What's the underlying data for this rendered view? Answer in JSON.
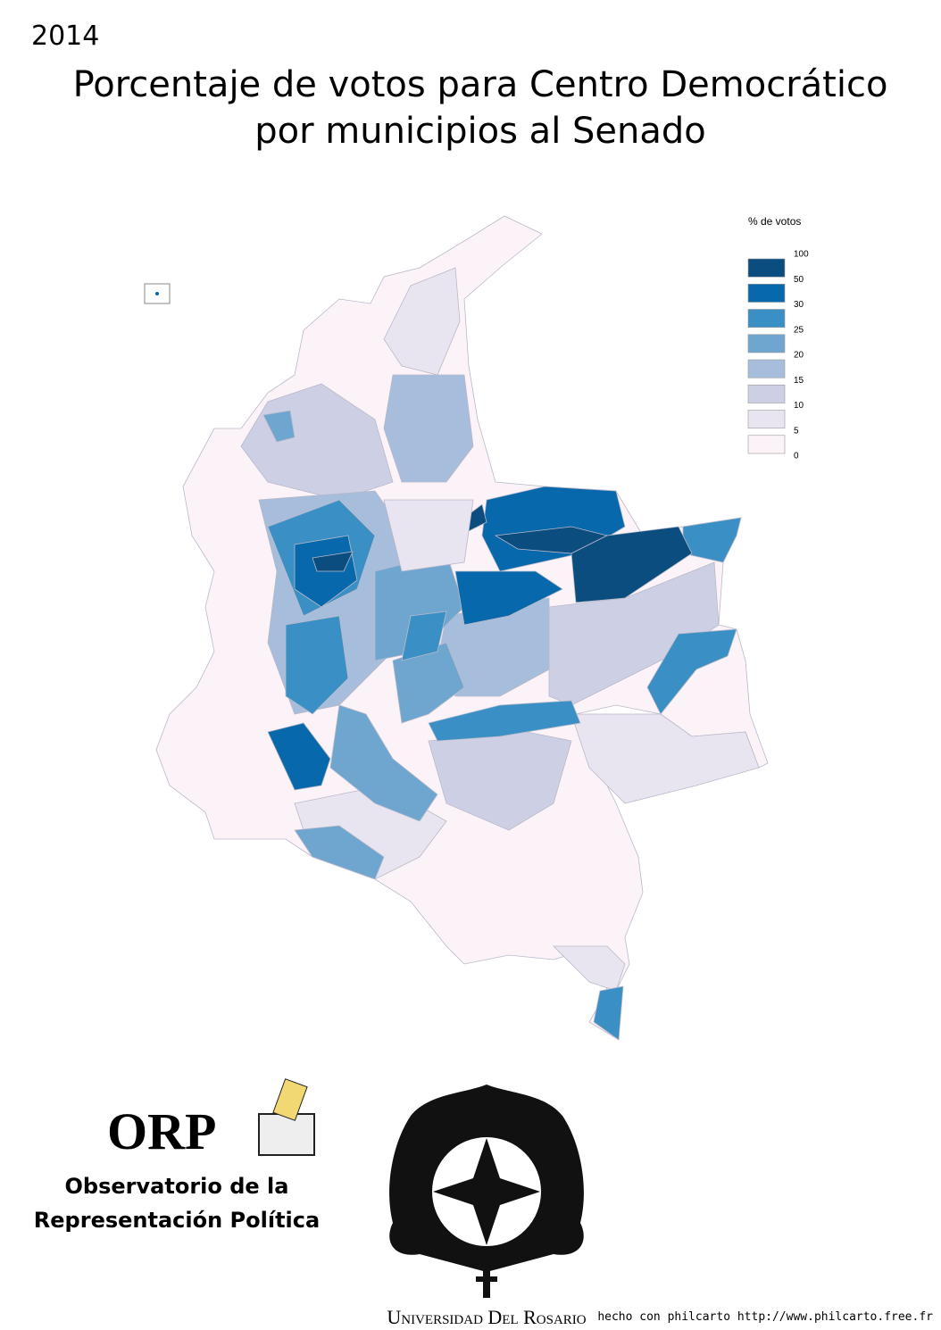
{
  "header": {
    "year": "2014",
    "title": [
      "Porcentaje de votos para Centro Democrático",
      "por municipios al Senado"
    ]
  },
  "legend": {
    "title": "% de votos",
    "breaks": [
      100,
      50,
      30,
      25,
      20,
      15,
      10,
      5,
      0
    ],
    "colors": [
      "#0a4d7e",
      "#0868ac",
      "#3a8fc4",
      "#6fa6d0",
      "#a6bddb",
      "#cdd0e5",
      "#e9e5f0",
      "#fbf3f8"
    ]
  },
  "logos": {
    "orp": "ORP",
    "orp_name": [
      "Observatorio de la",
      "Representación Política"
    ],
    "university": "Universidad Del Rosario"
  },
  "footer": "hecho con philcarto http://www.philcarto.free.fr"
}
